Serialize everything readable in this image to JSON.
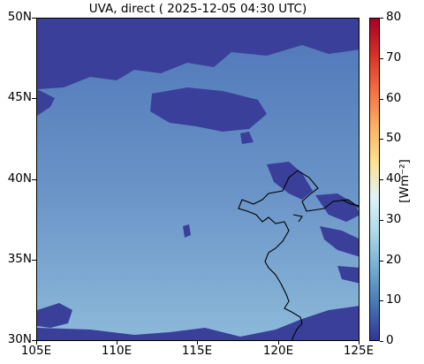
{
  "title": "UVA, direct ( 2025-12-05 04:30 UTC)",
  "colorbar": {
    "label": "[Wm⁻²]",
    "ticks": [
      "0",
      "10",
      "20",
      "30",
      "40",
      "50",
      "60",
      "70",
      "80"
    ],
    "min": 0,
    "max": 80,
    "colors": [
      "#313695",
      "#4575b4",
      "#74add1",
      "#abd9e9",
      "#e0f3f8",
      "#fee090",
      "#fdae61",
      "#f46d43",
      "#d73027",
      "#a50026"
    ]
  },
  "map": {
    "lat_ticks": [
      "30N",
      "35N",
      "40N",
      "45N",
      "50N"
    ],
    "lon_ticks": [
      "105E",
      "110E",
      "115E",
      "120E",
      "125E"
    ],
    "lat_range": [
      30,
      50
    ],
    "lon_range": [
      105,
      125
    ]
  }
}
